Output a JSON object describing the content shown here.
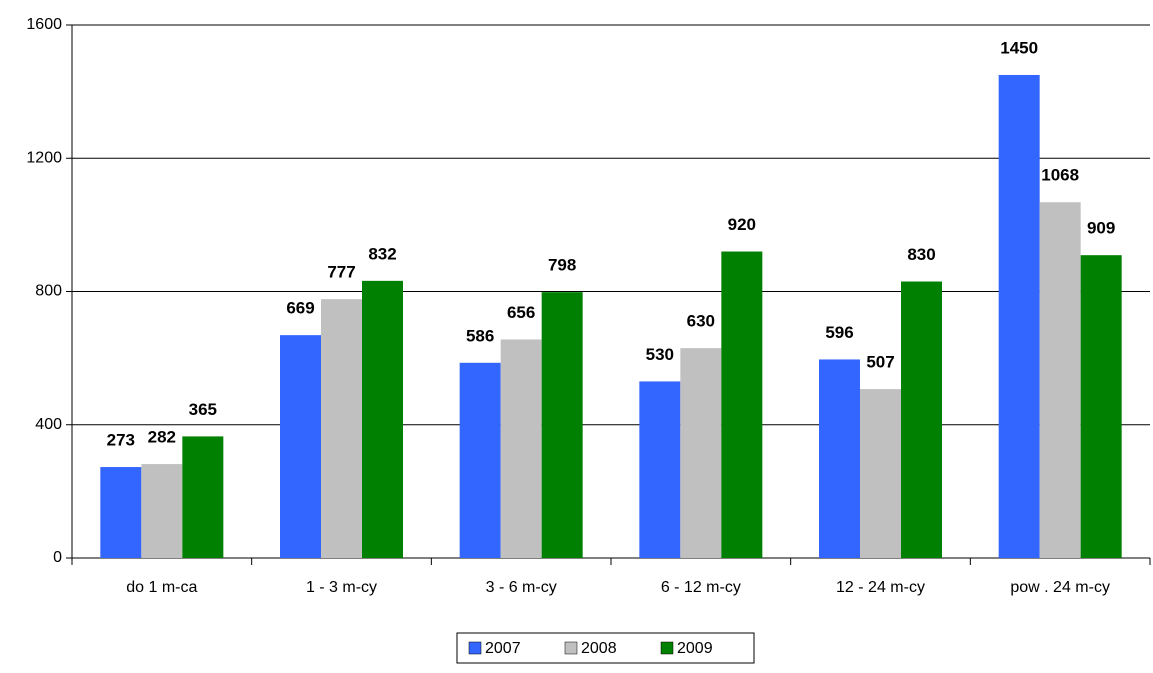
{
  "chart_data": {
    "type": "bar",
    "categories": [
      "do 1 m-ca",
      "1 - 3 m-cy",
      "3 - 6 m-cy",
      "6 - 12 m-cy",
      "12 - 24 m-cy",
      "pow . 24 m-cy"
    ],
    "series": [
      {
        "name": "2007",
        "color": "#3366ff",
        "values": [
          273,
          669,
          586,
          530,
          596,
          1450
        ]
      },
      {
        "name": "2008",
        "color": "#c0c0c0",
        "values": [
          282,
          777,
          656,
          630,
          507,
          1068
        ]
      },
      {
        "name": "2009",
        "color": "#008000",
        "values": [
          365,
          832,
          798,
          920,
          830,
          909
        ]
      }
    ],
    "ylim": [
      0,
      1600
    ],
    "yticks": [
      0,
      400,
      800,
      1200,
      1600
    ],
    "grid": true,
    "legend": "bottom"
  }
}
